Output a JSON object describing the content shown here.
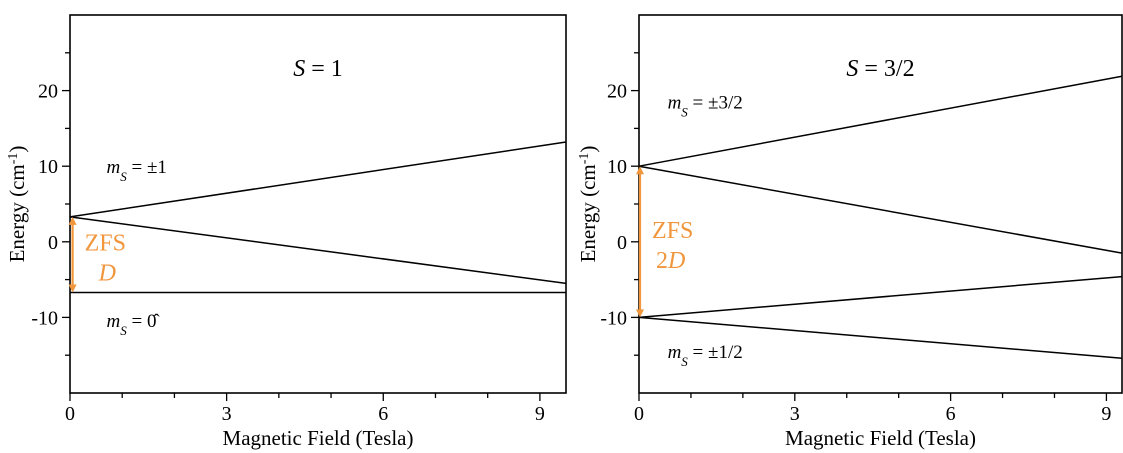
{
  "chart_data": [
    {
      "type": "line",
      "title": "S = 1",
      "title_parts": {
        "symbol": "S",
        "rest": " = 1"
      },
      "xlabel": "Magnetic Field (Tesla)",
      "ylabel_parts": {
        "main": "Energy (cm",
        "sup": "-1",
        "close": ")"
      },
      "xlim": [
        0,
        9.5
      ],
      "ylim": [
        -20,
        30
      ],
      "x_ticks": [
        0,
        3,
        6,
        9
      ],
      "x_minor_step": 1,
      "y_ticks": [
        -10,
        0,
        10,
        20
      ],
      "y_tick_labels": [
        "-10",
        "0",
        "10",
        "20"
      ],
      "y_minor_step": 5,
      "series": [
        {
          "x": [
            0,
            9.5
          ],
          "y": [
            3.3,
            13.2
          ]
        },
        {
          "x": [
            0,
            9.5
          ],
          "y": [
            3.3,
            -5.5
          ]
        },
        {
          "x": [
            0,
            9.5
          ],
          "y": [
            -6.7,
            -6.7
          ]
        }
      ],
      "state_labels": [
        {
          "sym": "m",
          "sub": "S",
          "eq": " = ±1",
          "x": 0.7,
          "y": 9.1
        },
        {
          "sym": "m",
          "sub": "S",
          "eq": " = 0̂",
          "x": 0.7,
          "y": -11.3
        }
      ],
      "zfs": {
        "line1": "ZFS",
        "line2_prefix": "",
        "line2_symbol": "D",
        "x": 0.05,
        "y_top": 3.3,
        "y_bottom": -6.7,
        "color": "#f0963c"
      }
    },
    {
      "type": "line",
      "title": "S = 3/2",
      "title_parts": {
        "symbol": "S",
        "rest": " = 3/2"
      },
      "xlabel": "Magnetic Field (Tesla)",
      "ylabel_parts": {
        "main": "Energy (cm",
        "sup": "-1",
        "close": ")"
      },
      "xlim": [
        0,
        9.3
      ],
      "ylim": [
        -20,
        30
      ],
      "x_ticks": [
        0,
        3,
        6,
        9
      ],
      "x_minor_step": 1,
      "y_ticks": [
        -10,
        0,
        10,
        20
      ],
      "y_tick_labels": [
        "-10",
        "0",
        "10",
        "20"
      ],
      "y_minor_step": 5,
      "series": [
        {
          "x": [
            0,
            9.3
          ],
          "y": [
            10,
            21.9
          ]
        },
        {
          "x": [
            0,
            9.3
          ],
          "y": [
            10,
            -1.5
          ]
        },
        {
          "x": [
            0,
            9.3
          ],
          "y": [
            -10,
            -4.6
          ]
        },
        {
          "x": [
            0,
            9.3
          ],
          "y": [
            -10,
            -15.4
          ]
        }
      ],
      "state_labels": [
        {
          "sym": "m",
          "sub": "S",
          "eq": " = ±3/2",
          "x": 0.55,
          "y": 17.6
        },
        {
          "sym": "m",
          "sub": "S",
          "eq": " = ±1/2",
          "x": 0.55,
          "y": -15.4
        }
      ],
      "zfs": {
        "line1": "ZFS",
        "line2_prefix": "2",
        "line2_symbol": "D",
        "x": 0.0,
        "y_top": 10,
        "y_bottom": -10,
        "color": "#f0963c"
      }
    }
  ]
}
